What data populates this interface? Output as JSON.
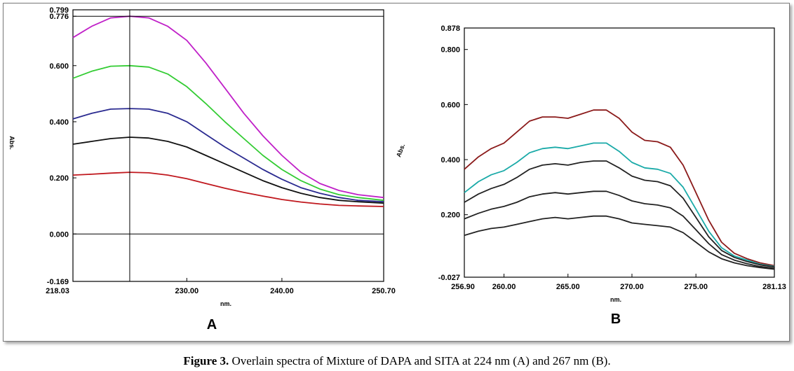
{
  "caption": {
    "label": "Figure 3.",
    "text": "Overlain spectra of Mixture of DAPA and SITA at 224 nm (A) and 267 nm (B)."
  },
  "chart_data": [
    {
      "type": "line",
      "panel_label": "A",
      "xlabel": "nm.",
      "ylabel": "Abs.",
      "xlim": [
        218.03,
        250.7
      ],
      "ylim": [
        -0.169,
        0.799
      ],
      "x_ticks": [
        "218.03",
        "230.00",
        "240.00",
        "250.70"
      ],
      "y_ticks": [
        "0.799",
        "0.776",
        "0.600",
        "0.400",
        "0.200",
        "0.000",
        "-0.169"
      ],
      "y_tick_values": [
        0.799,
        0.776,
        0.6,
        0.4,
        0.2,
        0.0,
        -0.169
      ],
      "cursor": {
        "x": 224.0,
        "y": 0.776,
        "baseline_y": 0.0
      },
      "series": [
        {
          "color": "#c020c8",
          "x": [
            218.03,
            220,
            222,
            224,
            226,
            228,
            230,
            232,
            234,
            236,
            238,
            240,
            242,
            244,
            246,
            248,
            250.7
          ],
          "values": [
            0.7,
            0.74,
            0.77,
            0.776,
            0.77,
            0.74,
            0.69,
            0.61,
            0.52,
            0.43,
            0.35,
            0.28,
            0.22,
            0.18,
            0.155,
            0.14,
            0.13
          ]
        },
        {
          "color": "#33cc33",
          "x": [
            218.03,
            220,
            222,
            224,
            226,
            228,
            230,
            232,
            234,
            236,
            238,
            240,
            242,
            244,
            246,
            248,
            250.7
          ],
          "values": [
            0.555,
            0.58,
            0.598,
            0.6,
            0.595,
            0.57,
            0.525,
            0.465,
            0.4,
            0.34,
            0.28,
            0.23,
            0.19,
            0.16,
            0.14,
            0.13,
            0.12
          ]
        },
        {
          "color": "#2a2a90",
          "x": [
            218.03,
            220,
            222,
            224,
            226,
            228,
            230,
            232,
            234,
            236,
            238,
            240,
            242,
            244,
            246,
            248,
            250.7
          ],
          "values": [
            0.41,
            0.43,
            0.445,
            0.447,
            0.445,
            0.43,
            0.4,
            0.355,
            0.31,
            0.27,
            0.23,
            0.195,
            0.165,
            0.145,
            0.13,
            0.12,
            0.115
          ]
        },
        {
          "color": "#111111",
          "x": [
            218.03,
            220,
            222,
            224,
            226,
            228,
            230,
            232,
            234,
            236,
            238,
            240,
            242,
            244,
            246,
            248,
            250.7
          ],
          "values": [
            0.32,
            0.33,
            0.34,
            0.345,
            0.342,
            0.33,
            0.31,
            0.28,
            0.25,
            0.22,
            0.19,
            0.165,
            0.145,
            0.13,
            0.12,
            0.115,
            0.11
          ]
        },
        {
          "color": "#c0181e",
          "x": [
            218.03,
            220,
            222,
            224,
            226,
            228,
            230,
            232,
            234,
            236,
            238,
            240,
            242,
            244,
            246,
            248,
            250.7
          ],
          "values": [
            0.21,
            0.213,
            0.217,
            0.22,
            0.218,
            0.21,
            0.197,
            0.18,
            0.163,
            0.148,
            0.135,
            0.123,
            0.114,
            0.107,
            0.102,
            0.1,
            0.098
          ]
        }
      ]
    },
    {
      "type": "line",
      "panel_label": "B",
      "xlabel": "nm.",
      "ylabel": "Abs.",
      "xlim": [
        256.9,
        281.13
      ],
      "ylim": [
        -0.027,
        0.878
      ],
      "x_ticks": [
        "256.90",
        "260.00",
        "265.00",
        "270.00",
        "275.00",
        "281.13"
      ],
      "y_ticks": [
        "0.878",
        "0.800",
        "0.600",
        "0.400",
        "0.200",
        "-0.027"
      ],
      "y_tick_values": [
        0.878,
        0.8,
        0.6,
        0.4,
        0.2,
        -0.027
      ],
      "series": [
        {
          "color": "#8b1a1a",
          "x": [
            256.9,
            258,
            259,
            260,
            261,
            262,
            263,
            264,
            265,
            266,
            267,
            268,
            269,
            270,
            271,
            272,
            273,
            274,
            275,
            276,
            277,
            278,
            279,
            280,
            281.13
          ],
          "values": [
            0.365,
            0.41,
            0.44,
            0.46,
            0.5,
            0.54,
            0.555,
            0.555,
            0.55,
            0.565,
            0.58,
            0.58,
            0.55,
            0.5,
            0.47,
            0.465,
            0.445,
            0.38,
            0.28,
            0.18,
            0.1,
            0.06,
            0.04,
            0.025,
            0.015
          ]
        },
        {
          "color": "#1aaaa8",
          "x": [
            256.9,
            258,
            259,
            260,
            261,
            262,
            263,
            264,
            265,
            266,
            267,
            268,
            269,
            270,
            271,
            272,
            273,
            274,
            275,
            276,
            277,
            278,
            279,
            280,
            281.13
          ],
          "values": [
            0.28,
            0.32,
            0.345,
            0.36,
            0.39,
            0.425,
            0.44,
            0.445,
            0.44,
            0.45,
            0.46,
            0.46,
            0.43,
            0.39,
            0.37,
            0.365,
            0.35,
            0.3,
            0.22,
            0.14,
            0.08,
            0.05,
            0.035,
            0.02,
            0.012
          ]
        },
        {
          "color": "#222222",
          "x": [
            256.9,
            258,
            259,
            260,
            261,
            262,
            263,
            264,
            265,
            266,
            267,
            268,
            269,
            270,
            271,
            272,
            273,
            274,
            275,
            276,
            277,
            278,
            279,
            280,
            281.13
          ],
          "values": [
            0.245,
            0.275,
            0.295,
            0.31,
            0.335,
            0.365,
            0.38,
            0.385,
            0.38,
            0.39,
            0.395,
            0.395,
            0.37,
            0.34,
            0.325,
            0.32,
            0.305,
            0.26,
            0.19,
            0.12,
            0.07,
            0.045,
            0.03,
            0.018,
            0.01
          ]
        },
        {
          "color": "#222222",
          "x": [
            256.9,
            258,
            259,
            260,
            261,
            262,
            263,
            264,
            265,
            266,
            267,
            268,
            269,
            270,
            271,
            272,
            273,
            274,
            275,
            276,
            277,
            278,
            279,
            280,
            281.13
          ],
          "values": [
            0.185,
            0.205,
            0.22,
            0.23,
            0.245,
            0.265,
            0.275,
            0.28,
            0.275,
            0.28,
            0.285,
            0.285,
            0.27,
            0.25,
            0.24,
            0.235,
            0.225,
            0.195,
            0.145,
            0.095,
            0.055,
            0.035,
            0.022,
            0.012,
            0.005
          ]
        },
        {
          "color": "#222222",
          "x": [
            256.9,
            258,
            259,
            260,
            261,
            262,
            263,
            264,
            265,
            266,
            267,
            268,
            269,
            270,
            271,
            272,
            273,
            274,
            275,
            276,
            277,
            278,
            279,
            280,
            281.13
          ],
          "values": [
            0.125,
            0.14,
            0.15,
            0.155,
            0.165,
            0.175,
            0.185,
            0.19,
            0.185,
            0.19,
            0.195,
            0.195,
            0.185,
            0.17,
            0.165,
            0.16,
            0.155,
            0.135,
            0.1,
            0.065,
            0.04,
            0.025,
            0.015,
            0.008,
            0.002
          ]
        }
      ]
    }
  ]
}
